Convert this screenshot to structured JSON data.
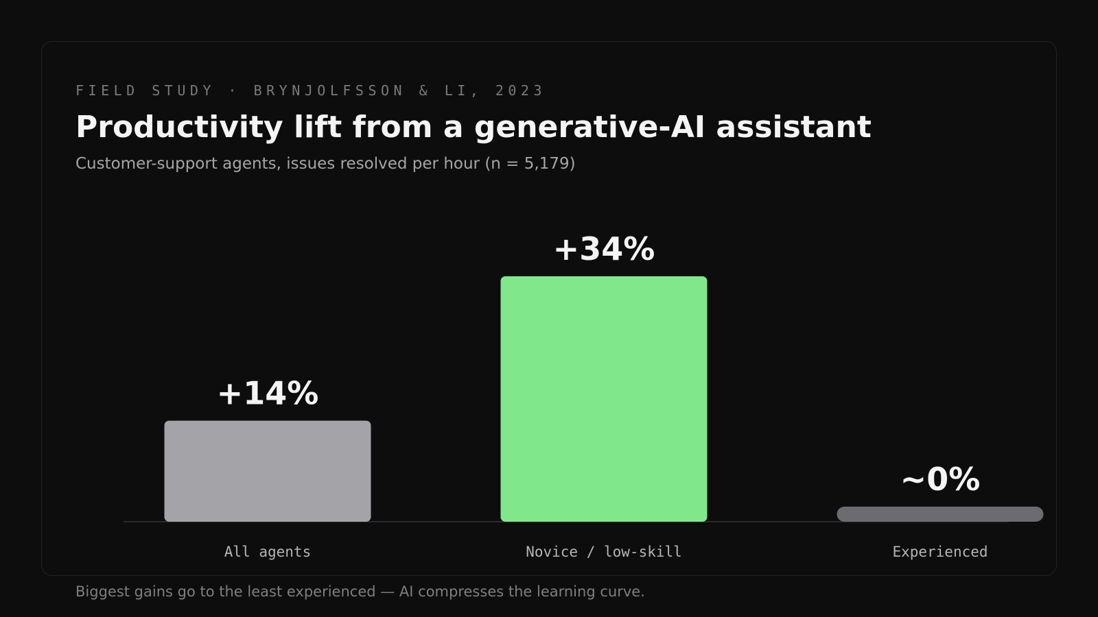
{
  "eyebrow": "FIELD STUDY · BRYNJOLFSSON & LI, 2023",
  "title": "Productivity lift from a generative-AI assistant",
  "subtitle": "Customer-support agents, issues resolved per hour (n = 5,179)",
  "footnote": "Biggest gains go to the least experienced — AI compresses the learning curve.",
  "chart_data": {
    "type": "bar",
    "title": "Productivity lift from a generative-AI assistant",
    "xlabel": "",
    "ylabel": "",
    "ylim": [
      0,
      34
    ],
    "grid": false,
    "categories": [
      "All agents",
      "Novice / low-skill",
      "Experienced"
    ],
    "values": [
      14,
      34,
      0
    ],
    "value_labels": [
      "+14%",
      "+34%",
      "~0%"
    ],
    "colors": [
      "#a3a3a8",
      "#80e88a",
      "#6b6b70"
    ]
  }
}
